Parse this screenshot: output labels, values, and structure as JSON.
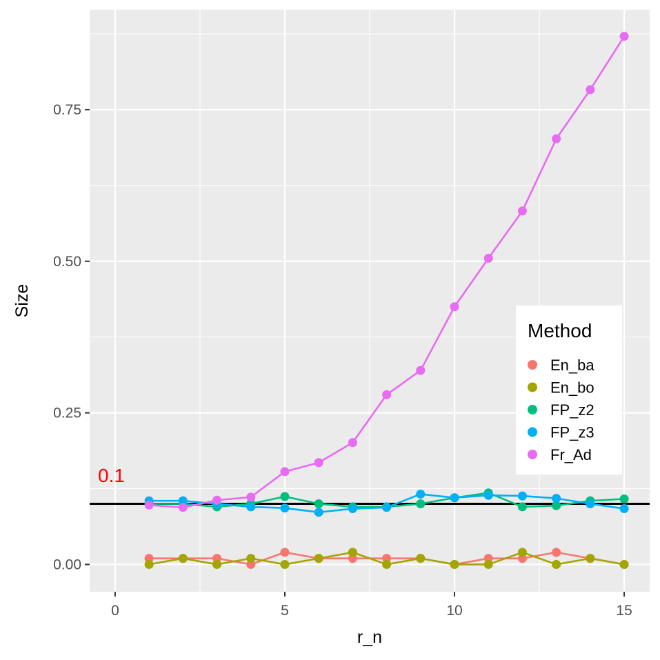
{
  "chart_data": {
    "type": "line",
    "xlabel": "r_n",
    "ylabel": "Size",
    "xlim": [
      -0.75,
      15.75
    ],
    "ylim": [
      -0.045,
      0.915
    ],
    "x_ticks": [
      0,
      5,
      10,
      15
    ],
    "x_tick_labels": [
      "0",
      "5",
      "10",
      "15"
    ],
    "y_ticks": [
      0,
      0.25,
      0.5,
      0.75
    ],
    "y_tick_labels": [
      "0.00",
      "0.25",
      "0.50",
      "0.75"
    ],
    "grid": true,
    "legend": {
      "title": "Method",
      "position": "right"
    },
    "reference_line": {
      "y": 0.1,
      "label": "0.1",
      "label_color": "#ff0000",
      "color": "#000000"
    },
    "x": [
      1,
      2,
      3,
      4,
      5,
      6,
      7,
      8,
      9,
      10,
      11,
      12,
      13,
      14,
      15
    ],
    "series": [
      {
        "name": "En_ba",
        "color": "#f8766d",
        "values": [
          0.01,
          0.01,
          0.01,
          0.0,
          0.02,
          0.01,
          0.01,
          0.01,
          0.01,
          0.0,
          0.01,
          0.01,
          0.02,
          0.01,
          0.0
        ]
      },
      {
        "name": "En_bo",
        "color": "#a3a500",
        "values": [
          0.0,
          0.01,
          0.0,
          0.01,
          0.0,
          0.01,
          0.02,
          0.0,
          0.01,
          0.0,
          0.0,
          0.02,
          0.0,
          0.01,
          0.0
        ]
      },
      {
        "name": "FP_z2",
        "color": "#00bf7d",
        "values": [
          0.1,
          0.1,
          0.095,
          0.1,
          0.112,
          0.1,
          0.095,
          0.095,
          0.1,
          0.11,
          0.118,
          0.095,
          0.097,
          0.105,
          0.108
        ]
      },
      {
        "name": "FP_z3",
        "color": "#00b0f6",
        "values": [
          0.105,
          0.105,
          0.1,
          0.095,
          0.093,
          0.086,
          0.092,
          0.094,
          0.116,
          0.11,
          0.114,
          0.113,
          0.109,
          0.1,
          0.092
        ]
      },
      {
        "name": "Fr_Ad",
        "color": "#e76bf3",
        "values": [
          0.098,
          0.094,
          0.106,
          0.111,
          0.153,
          0.168,
          0.201,
          0.28,
          0.32,
          0.425,
          0.505,
          0.583,
          0.702,
          0.783,
          0.871
        ]
      }
    ]
  }
}
